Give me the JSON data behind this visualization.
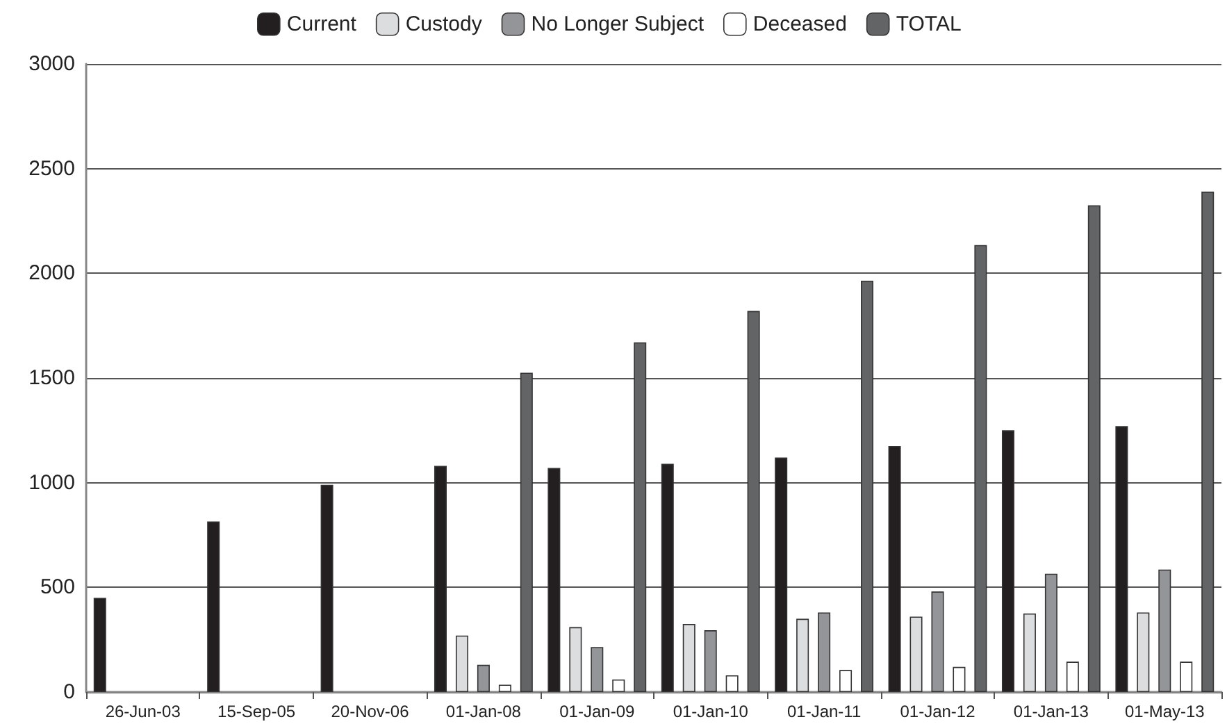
{
  "chart_data": {
    "type": "bar",
    "categories": [
      "26-Jun-03",
      "15-Sep-05",
      "20-Nov-06",
      "01-Jan-08",
      "01-Jan-09",
      "01-Jan-10",
      "01-Jan-11",
      "01-Jan-12",
      "01-Jan-13",
      "01-May-13"
    ],
    "series": [
      {
        "name": "Current",
        "color": "#231f20",
        "values": [
          450,
          815,
          990,
          1080,
          1070,
          1090,
          1120,
          1175,
          1250,
          1270
        ]
      },
      {
        "name": "Custody",
        "color": "#dcdddf",
        "values": [
          null,
          null,
          null,
          270,
          310,
          325,
          350,
          360,
          375,
          380
        ]
      },
      {
        "name": "No Longer Subject",
        "color": "#939598",
        "values": [
          null,
          null,
          null,
          130,
          215,
          295,
          380,
          480,
          565,
          585
        ]
      },
      {
        "name": "Deceased",
        "color": "#ffffff",
        "values": [
          null,
          null,
          null,
          35,
          60,
          80,
          105,
          120,
          145,
          145
        ]
      },
      {
        "name": "TOTAL",
        "color": "#636466",
        "values": [
          null,
          null,
          null,
          1525,
          1670,
          1820,
          1965,
          2135,
          2325,
          2390
        ]
      }
    ],
    "ylim": [
      0,
      3000
    ],
    "yticks": [
      0,
      500,
      1000,
      1500,
      2000,
      2500,
      3000
    ],
    "grid": "y",
    "legend": "top"
  }
}
